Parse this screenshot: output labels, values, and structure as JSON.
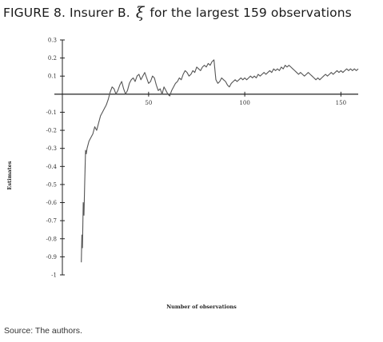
{
  "figure": {
    "title_prefix": "FIGURE 8. Insurer B.",
    "title_symbol": "ξ",
    "title_symbol_hat": "^",
    "title_suffix": "for the largest 159 observations",
    "source": "Source: The authors."
  },
  "chart_data": {
    "type": "line",
    "xlabel": "Number of observations",
    "ylabel": "Estimates",
    "xlim": [
      1,
      159
    ],
    "ylim": [
      -1,
      0.3
    ],
    "x_ticks": [
      50,
      100,
      150
    ],
    "y_ticks": [
      0.3,
      0.2,
      0.1,
      -0.1,
      -0.2,
      -0.3,
      -0.4,
      -0.5,
      -0.6,
      -0.7,
      -0.8,
      -0.9,
      -1
    ],
    "y_tick_labels": [
      "0.3",
      "0.2",
      "0.1",
      "-0.1",
      "-0.2",
      "-0.3",
      "-0.4",
      "-0.5",
      "-0.6",
      "-0.7",
      "-0.8",
      "-0.9",
      "-1"
    ],
    "grid": false,
    "line_color": "#555555",
    "series": [
      {
        "x": [
          15,
          15.3,
          15.6,
          16,
          16.4,
          16.8,
          17.2,
          17.6,
          18,
          19,
          20,
          21,
          22,
          23,
          24,
          25,
          26,
          27,
          28,
          29,
          30,
          31,
          32,
          33,
          34,
          35,
          36,
          37,
          38,
          39,
          40,
          41,
          42,
          43,
          44,
          45,
          46,
          47,
          48,
          49,
          50,
          51,
          52,
          53,
          54,
          55,
          56,
          57,
          58,
          59,
          60,
          61,
          62,
          63,
          64,
          65,
          66,
          67,
          68,
          69,
          70,
          71,
          72,
          73,
          74,
          75,
          76,
          77,
          78,
          79,
          80,
          81,
          82,
          83,
          84,
          85,
          86,
          87,
          88,
          89,
          90,
          91,
          92,
          93,
          94,
          95,
          96,
          97,
          98,
          99,
          100,
          101,
          102,
          103,
          104,
          105,
          106,
          107,
          108,
          109,
          110,
          111,
          112,
          113,
          114,
          115,
          116,
          117,
          118,
          119,
          120,
          121,
          122,
          123,
          124,
          125,
          126,
          127,
          128,
          129,
          130,
          131,
          132,
          133,
          134,
          135,
          136,
          137,
          138,
          139,
          140,
          141,
          142,
          143,
          144,
          145,
          146,
          147,
          148,
          149,
          150,
          151,
          152,
          153,
          154,
          155,
          156,
          157,
          158,
          159
        ],
        "y": [
          -0.93,
          -0.78,
          -0.85,
          -0.6,
          -0.67,
          -0.48,
          -0.31,
          -0.33,
          -0.3,
          -0.26,
          -0.24,
          -0.22,
          -0.18,
          -0.2,
          -0.16,
          -0.12,
          -0.1,
          -0.08,
          -0.06,
          -0.03,
          0.01,
          0.04,
          0.03,
          0.0,
          0.02,
          0.05,
          0.07,
          0.03,
          0.0,
          0.02,
          0.06,
          0.08,
          0.09,
          0.07,
          0.1,
          0.11,
          0.08,
          0.1,
          0.12,
          0.09,
          0.06,
          0.07,
          0.1,
          0.09,
          0.05,
          0.02,
          0.03,
          0.0,
          0.04,
          0.02,
          0.0,
          -0.01,
          0.02,
          0.04,
          0.06,
          0.07,
          0.09,
          0.08,
          0.11,
          0.13,
          0.12,
          0.1,
          0.11,
          0.13,
          0.12,
          0.15,
          0.14,
          0.13,
          0.15,
          0.16,
          0.15,
          0.17,
          0.16,
          0.18,
          0.19,
          0.08,
          0.06,
          0.07,
          0.09,
          0.08,
          0.07,
          0.05,
          0.04,
          0.06,
          0.07,
          0.08,
          0.07,
          0.08,
          0.09,
          0.08,
          0.09,
          0.08,
          0.09,
          0.1,
          0.09,
          0.1,
          0.09,
          0.11,
          0.1,
          0.11,
          0.12,
          0.11,
          0.12,
          0.13,
          0.12,
          0.14,
          0.13,
          0.14,
          0.13,
          0.15,
          0.14,
          0.16,
          0.15,
          0.16,
          0.15,
          0.14,
          0.13,
          0.12,
          0.11,
          0.12,
          0.11,
          0.1,
          0.11,
          0.12,
          0.11,
          0.1,
          0.09,
          0.08,
          0.09,
          0.08,
          0.09,
          0.1,
          0.11,
          0.1,
          0.11,
          0.12,
          0.11,
          0.12,
          0.13,
          0.12,
          0.13,
          0.12,
          0.13,
          0.14,
          0.13,
          0.14,
          0.13,
          0.14,
          0.13,
          0.14
        ]
      }
    ]
  }
}
